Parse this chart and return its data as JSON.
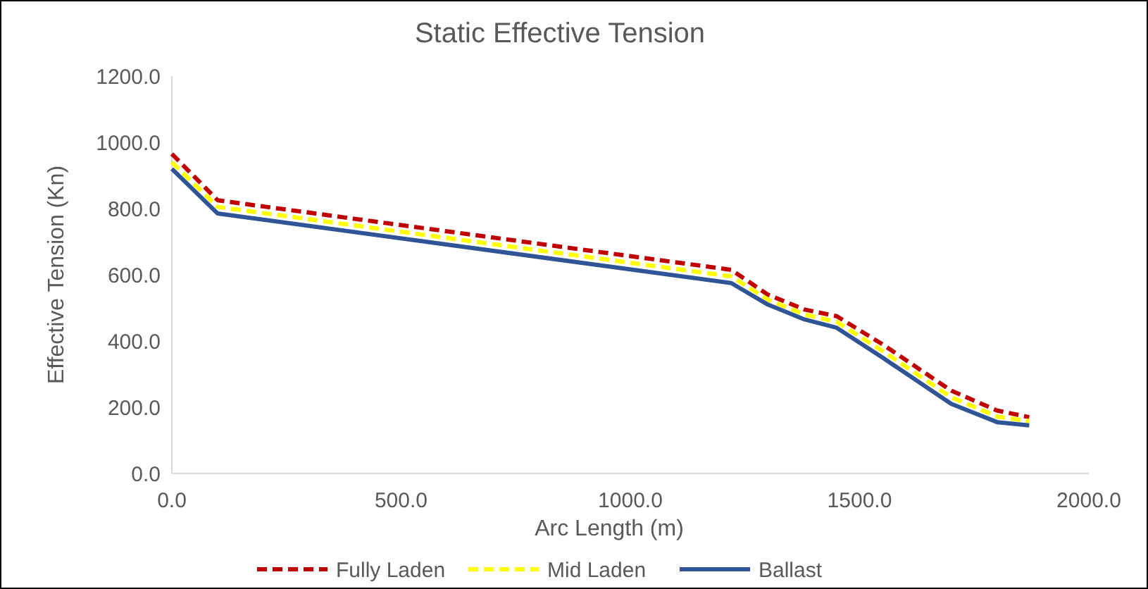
{
  "chart_data": {
    "type": "line",
    "title": "Static Effective Tension",
    "xlabel": "Arc Length (m)",
    "ylabel": "Effective Tension (Kn)",
    "xlim": [
      0,
      2000
    ],
    "xticks": [
      {
        "value": 0,
        "label": "0.0"
      },
      {
        "value": 500,
        "label": "500.0"
      },
      {
        "value": 1000,
        "label": "1000.0"
      },
      {
        "value": 1500,
        "label": "1500.0"
      },
      {
        "value": 2000,
        "label": "2000.0"
      }
    ],
    "ylim": [
      0,
      1200
    ],
    "yticks": [
      {
        "value": 0,
        "label": "0.0"
      },
      {
        "value": 200,
        "label": "200.0"
      },
      {
        "value": 400,
        "label": "400.0"
      },
      {
        "value": 600,
        "label": "600.0"
      },
      {
        "value": 800,
        "label": "800.0"
      },
      {
        "value": 1000,
        "label": "1000.0"
      },
      {
        "value": 1200,
        "label": "1200.0"
      }
    ],
    "x": [
      0,
      100,
      1220,
      1300,
      1380,
      1450,
      1550,
      1700,
      1800,
      1870
    ],
    "grid": false,
    "legend": "bottom",
    "marker": "none",
    "series": [
      {
        "name": "Fully Laden",
        "color": "#c00000",
        "line_style": "dashed",
        "values": [
          965,
          825,
          615,
          540,
          495,
          475,
          390,
          250,
          190,
          170
        ]
      },
      {
        "name": "Mid Laden",
        "color": "#ffff00",
        "line_style": "dashed",
        "values": [
          940,
          805,
          595,
          525,
          480,
          458,
          370,
          230,
          172,
          158
        ]
      },
      {
        "name": "Ballast",
        "color": "#2f5597",
        "line_style": "solid",
        "values": [
          920,
          785,
          575,
          510,
          465,
          440,
          350,
          210,
          155,
          145
        ]
      }
    ]
  }
}
